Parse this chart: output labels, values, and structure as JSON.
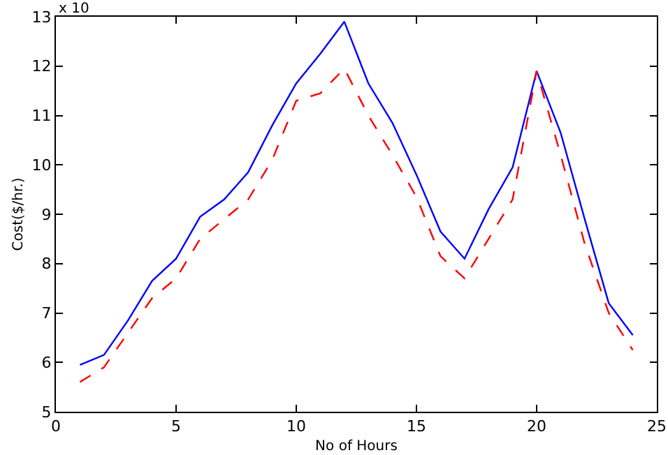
{
  "chart_data": {
    "type": "line",
    "xlabel": "No of Hours",
    "ylabel": "Cost($/hr.)",
    "annotations": [
      "x 10"
    ],
    "x": [
      1,
      2,
      3,
      4,
      5,
      6,
      7,
      8,
      9,
      10,
      11,
      12,
      13,
      14,
      15,
      16,
      17,
      18,
      19,
      20,
      21,
      22,
      23,
      24
    ],
    "series": [
      {
        "color": "#0000ff",
        "line_style": "solid",
        "values": [
          5.95,
          6.15,
          6.85,
          7.65,
          8.1,
          8.95,
          9.3,
          9.85,
          10.8,
          11.65,
          12.25,
          12.9,
          11.65,
          10.85,
          9.8,
          8.65,
          8.1,
          9.1,
          9.95,
          11.9,
          10.65,
          8.9,
          7.2,
          6.55
        ]
      },
      {
        "color": "#ff0000",
        "line_style": "dashed",
        "values": [
          5.6,
          5.9,
          6.6,
          7.3,
          7.7,
          8.5,
          8.9,
          9.3,
          10.1,
          11.3,
          11.45,
          11.95,
          11.0,
          10.2,
          9.35,
          8.15,
          7.7,
          8.5,
          9.3,
          11.9,
          10.2,
          8.4,
          7.0,
          6.25
        ]
      }
    ],
    "xlim": [
      0,
      25
    ],
    "xticks": [
      0,
      5,
      10,
      15,
      20,
      25
    ],
    "ylim": [
      5,
      13
    ],
    "yticks": [
      5,
      6,
      7,
      8,
      9,
      10,
      11,
      12,
      13
    ],
    "grid": false,
    "marker": "none"
  }
}
